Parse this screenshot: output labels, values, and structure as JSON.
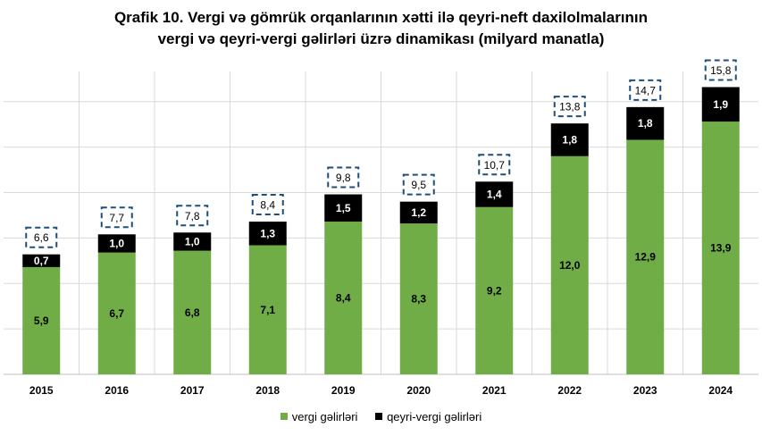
{
  "title_line1": "Qrafik 10. Vergi və gömrük orqanlarının xətti ilə qeyri-neft daxilolmalarının",
  "title_line2": "vergi və qeyri-vergi gəlirləri üzrə dinamikası (milyard manatla)",
  "colors": {
    "vergi": "#70AD47",
    "qeyri": "#000000",
    "total_box": "#1F4E79",
    "grid": "#D9D9D9"
  },
  "chart_data": {
    "type": "bar",
    "stacked": true,
    "categories": [
      "2015",
      "2016",
      "2017",
      "2018",
      "2019",
      "2020",
      "2021",
      "2022",
      "2023",
      "2024"
    ],
    "series": [
      {
        "name": "vergi gəlirləri",
        "values": [
          5.9,
          6.7,
          6.8,
          7.1,
          8.4,
          8.3,
          9.2,
          12.0,
          12.9,
          13.9
        ]
      },
      {
        "name": "qeyri-vergi gəlirləri",
        "values": [
          0.7,
          1.0,
          1.0,
          1.3,
          1.5,
          1.2,
          1.4,
          1.8,
          1.8,
          1.9
        ]
      }
    ],
    "series_labels": [
      [
        "5,9",
        "6,7",
        "6,8",
        "7,1",
        "8,4",
        "8,3",
        "9,2",
        "12,0",
        "12,9",
        "13,9"
      ],
      [
        "0,7",
        "1,0",
        "1,0",
        "1,3",
        "1,5",
        "1,2",
        "1,4",
        "1,8",
        "1,8",
        "1,9"
      ]
    ],
    "totals": [
      6.6,
      7.7,
      7.8,
      8.4,
      9.8,
      9.5,
      10.7,
      13.8,
      14.7,
      15.8
    ],
    "total_labels": [
      "6,6",
      "7,7",
      "7,8",
      "8,4",
      "9,8",
      "9,5",
      "10,7",
      "13,8",
      "14,7",
      "15,8"
    ],
    "ylim": [
      0,
      17
    ],
    "grid": true,
    "legend_position": "bottom"
  }
}
